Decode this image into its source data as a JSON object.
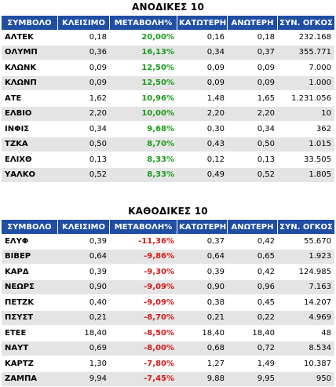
{
  "gainers": {
    "title": "ΑΝΟΔΙΚΕΣ 10",
    "headers": [
      "ΣΥΜΒΟΛΟ",
      "ΚΛΕΙΣΙΜΟ",
      "ΜΕΤΑΒΟΛΗ%",
      "ΚΑΤΩΤΕΡΗ",
      "ΑΝΩΤΕΡΗ",
      "ΣΥΝ. ΟΓΚΟΣ"
    ],
    "rows": [
      [
        "ΑΛΤΕΚ",
        "0,18",
        "20,00%",
        "0,16",
        "0,18",
        "232.168"
      ],
      [
        "ΟΛΥΜΠ",
        "0,36",
        "16,13%",
        "0,34",
        "0,37",
        "355.771"
      ],
      [
        "ΚΛΩΝΚ",
        "0,09",
        "12,50%",
        "0,09",
        "0,09",
        "7.000"
      ],
      [
        "ΚΛΩΝΠ",
        "0,09",
        "12,50%",
        "0,09",
        "0,09",
        "1.000"
      ],
      [
        "ΑΤΕ",
        "1,62",
        "10,96%",
        "1,48",
        "1,65",
        "1.231.056"
      ],
      [
        "ΕΛΒΙΟ",
        "2,20",
        "10,00%",
        "2,20",
        "2,20",
        "10"
      ],
      [
        "ΙΝΦΙΣ",
        "0,34",
        "9,68%",
        "0,30",
        "0,34",
        "362"
      ],
      [
        "ΤΖΚΑ",
        "0,50",
        "8,70%",
        "0,43",
        "0,50",
        "1.015"
      ],
      [
        "ΕΛΙΧΘ",
        "0,13",
        "8,33%",
        "0,12",
        "0,13",
        "33.505"
      ],
      [
        "ΥΑΛΚΟ",
        "0,52",
        "8,33%",
        "0,49",
        "0,52",
        "1.805"
      ]
    ]
  },
  "losers": {
    "title": "ΚΑΘΟΔΙΚΕΣ 10",
    "headers": [
      "ΣΥΜΒΟΛΟ",
      "ΚΛΕΙΣΙΜΟ",
      "ΜΕΤΑΒΟΛΗ%",
      "ΚΑΤΩΤΕΡΗ",
      "ΑΝΩΤΕΡΗ",
      "ΣΥΝ. ΟΓΚΟΣ"
    ],
    "rows": [
      [
        "ΕΛΥΦ",
        "0,39",
        "-11,36%",
        "0,37",
        "0,42",
        "55.670"
      ],
      [
        "ΒΙΒΕΡ",
        "0,64",
        "-9,86%",
        "0,64",
        "0,65",
        "1.923"
      ],
      [
        "ΚΑΡΔ",
        "0,39",
        "-9,30%",
        "0,39",
        "0,42",
        "124.985"
      ],
      [
        "ΝΕΩΡΣ",
        "0,90",
        "-9,09%",
        "0,90",
        "0,96",
        "7.163"
      ],
      [
        "ΠΕΤΖΚ",
        "0,40",
        "-9,09%",
        "0,38",
        "0,45",
        "14.207"
      ],
      [
        "ΠΣΥΣΤ",
        "0,21",
        "-8,70%",
        "0,21",
        "0,22",
        "4.969"
      ],
      [
        "ΕΤΕΕ",
        "18,40",
        "-8,50%",
        "18,40",
        "18,40",
        "48"
      ],
      [
        "ΝΑΥΤ",
        "0,69",
        "-8,00%",
        "0,68",
        "0,72",
        "8.534"
      ],
      [
        "ΚΑΡΤΖ",
        "1,30",
        "-7,80%",
        "1,27",
        "1,49",
        "10.387"
      ],
      [
        "ΖΑΜΠΑ",
        "9,94",
        "-7,45%",
        "9,88",
        "9,95",
        "950"
      ]
    ]
  },
  "colors": {
    "header_bg": "#1f4ea3",
    "row_alt_bg": "#e4e4e4",
    "positive": "#1a9a1a",
    "negative": "#d11a1a"
  }
}
